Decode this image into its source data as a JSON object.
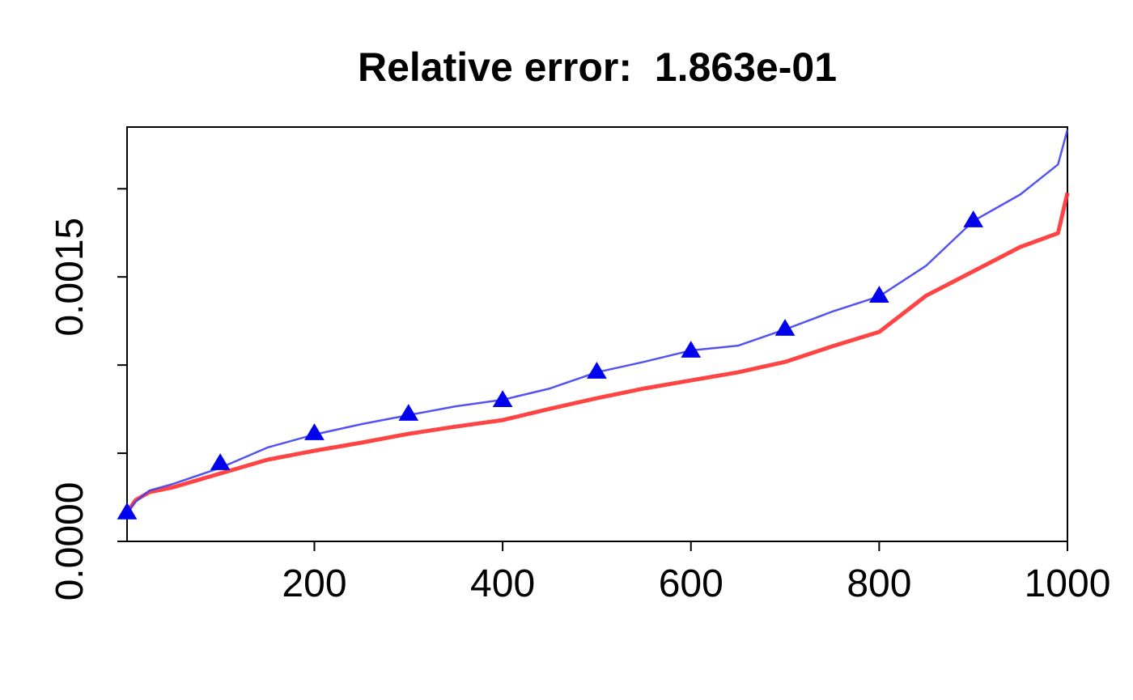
{
  "chart_data": {
    "type": "line",
    "title": "Relative error:  1.863e-01",
    "xlim": [
      1,
      1000
    ],
    "xticks": [
      200,
      400,
      600,
      800,
      1000
    ],
    "ylim": [
      0,
      0.00235
    ],
    "yticks": [
      {
        "value": 0,
        "label": "0.0000"
      },
      {
        "value": 0.0005,
        "label": null
      },
      {
        "value": 0.001,
        "label": null
      },
      {
        "value": 0.0015,
        "label": "0.0015"
      },
      {
        "value": 0.002,
        "label": null
      }
    ],
    "series": [
      {
        "color": "#ff3030",
        "marker": "none",
        "x": [
          1,
          10,
          25,
          50,
          100,
          150,
          200,
          250,
          300,
          350,
          400,
          450,
          500,
          550,
          600,
          650,
          700,
          750,
          800,
          850,
          900,
          950,
          990,
          1000
        ],
        "values": [
          0.000165,
          0.000234,
          0.00028,
          0.000307,
          0.000385,
          0.000463,
          0.000514,
          0.00056,
          0.00061,
          0.000651,
          0.000688,
          0.000752,
          0.000812,
          0.000867,
          0.000913,
          0.000959,
          0.001018,
          0.001106,
          0.001188,
          0.001394,
          0.001532,
          0.00167,
          0.001748,
          0.001977
        ]
      },
      {
        "color": "#4040f0",
        "marker": "none",
        "x": [
          1,
          10,
          25,
          50,
          100,
          150,
          200,
          250,
          300,
          350,
          400,
          450,
          500,
          550,
          600,
          650,
          700,
          750,
          800,
          850,
          900,
          950,
          990,
          1000
        ],
        "values": [
          0.000161,
          0.000225,
          0.000289,
          0.000326,
          0.000417,
          0.000532,
          0.000606,
          0.000665,
          0.000716,
          0.000766,
          0.000803,
          0.000867,
          0.000959,
          0.001018,
          0.001083,
          0.00111,
          0.001202,
          0.001303,
          0.00139,
          0.001564,
          0.001817,
          0.001968,
          0.002138,
          0.002335
        ]
      },
      {
        "color": "#0000ee",
        "marker": "triangle",
        "x": [
          1,
          100,
          200,
          300,
          400,
          500,
          600,
          700,
          800,
          900
        ],
        "values": [
          0.000161,
          0.00044,
          0.00061,
          0.00072,
          0.000798,
          0.000959,
          0.001078,
          0.001202,
          0.00139,
          0.001817
        ]
      }
    ]
  }
}
